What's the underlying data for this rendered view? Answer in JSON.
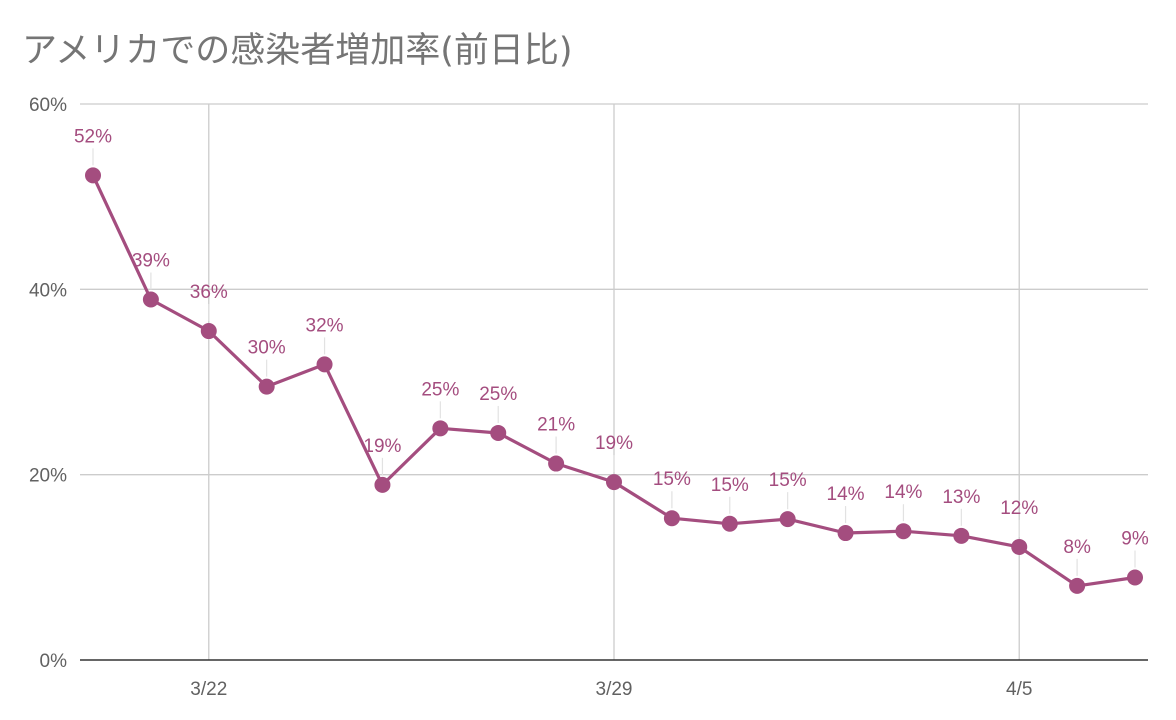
{
  "chart_data": {
    "type": "line",
    "title": "アメリカでの感染者増加率(前日比)",
    "xlabel": "",
    "ylabel": "",
    "ylim": [
      0,
      60
    ],
    "y_tick_labels": [
      "0%",
      "20%",
      "40%",
      "60%"
    ],
    "x_tick_labels": [
      {
        "label": "3/22",
        "index": 2
      },
      {
        "label": "3/29",
        "index": 9
      },
      {
        "label": "4/5",
        "index": 16
      }
    ],
    "grid": true,
    "legend": "none",
    "line_color": "#a44d7f",
    "series": [
      {
        "values": [
          52.3,
          38.9,
          35.5,
          29.5,
          31.9,
          18.9,
          25.0,
          24.5,
          21.2,
          19.2,
          15.3,
          14.7,
          15.2,
          13.7,
          13.9,
          13.4,
          12.2,
          8.0,
          8.9
        ],
        "labels": [
          "52%",
          "39%",
          "36%",
          "30%",
          "32%",
          "19%",
          "25%",
          "25%",
          "21%",
          "19%",
          "15%",
          "15%",
          "15%",
          "14%",
          "14%",
          "13%",
          "12%",
          "8%",
          "9%"
        ]
      }
    ]
  }
}
